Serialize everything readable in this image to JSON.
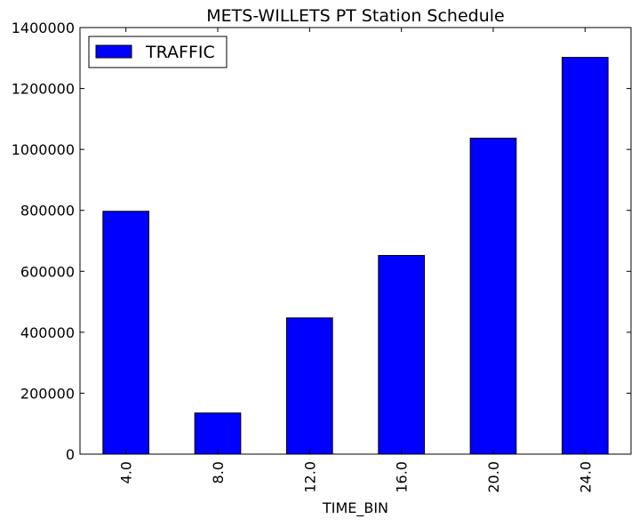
{
  "chart_data": {
    "type": "bar",
    "title": "METS-WILLETS PT Station Schedule",
    "xlabel": "TIME_BIN",
    "ylabel": "",
    "categories": [
      "4.0",
      "8.0",
      "12.0",
      "16.0",
      "20.0",
      "24.0"
    ],
    "series": [
      {
        "name": "TRAFFIC",
        "values": [
          797000,
          135000,
          447000,
          652000,
          1037000,
          1302000
        ],
        "color": "#0000ff"
      }
    ],
    "ylim": [
      0,
      1400000
    ],
    "yticks": [
      "0",
      "200000",
      "400000",
      "600000",
      "800000",
      "1000000",
      "1200000",
      "1400000"
    ],
    "grid": false,
    "legend": "top-left"
  }
}
